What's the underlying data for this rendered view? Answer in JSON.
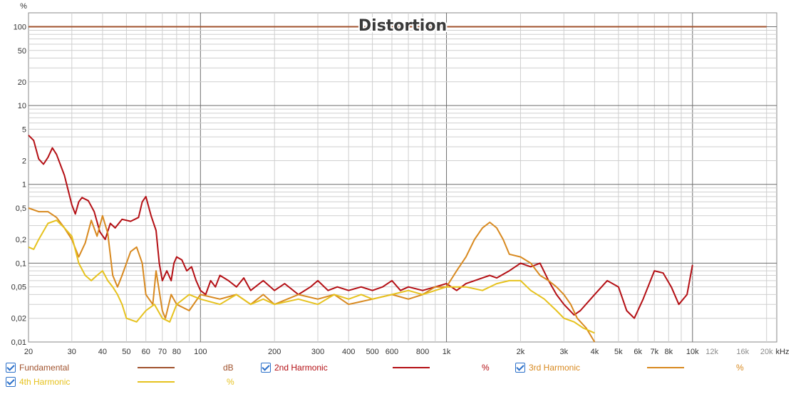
{
  "chart_data": {
    "type": "line",
    "title": "Distortion",
    "y_unit_label": "%",
    "x_unit_label": "kHz",
    "x_scale": "log",
    "y_scale": "log",
    "xlim": [
      20,
      22000
    ],
    "ylim": [
      0.01,
      150
    ],
    "grid": true,
    "legend_placement": "bottom",
    "x_ticks": [
      {
        "v": 20,
        "label": "20"
      },
      {
        "v": 30,
        "label": "30"
      },
      {
        "v": 40,
        "label": "40"
      },
      {
        "v": 50,
        "label": "50"
      },
      {
        "v": 60,
        "label": "60"
      },
      {
        "v": 70,
        "label": "70"
      },
      {
        "v": 80,
        "label": "80"
      },
      {
        "v": 100,
        "label": "100"
      },
      {
        "v": 200,
        "label": "200"
      },
      {
        "v": 300,
        "label": "300"
      },
      {
        "v": 400,
        "label": "400"
      },
      {
        "v": 500,
        "label": "500"
      },
      {
        "v": 600,
        "label": "600"
      },
      {
        "v": 800,
        "label": "800"
      },
      {
        "v": 1000,
        "label": "1k"
      },
      {
        "v": 2000,
        "label": "2k"
      },
      {
        "v": 3000,
        "label": "3k"
      },
      {
        "v": 4000,
        "label": "4k"
      },
      {
        "v": 5000,
        "label": "5k"
      },
      {
        "v": 6000,
        "label": "6k"
      },
      {
        "v": 7000,
        "label": "7k"
      },
      {
        "v": 8000,
        "label": "8k"
      },
      {
        "v": 10000,
        "label": "10k"
      },
      {
        "v": 12000,
        "label": "12k"
      },
      {
        "v": 16000,
        "label": "16k"
      },
      {
        "v": 20000,
        "label": "20k"
      }
    ],
    "y_ticks": [
      {
        "v": 100,
        "label": "100"
      },
      {
        "v": 50,
        "label": "50"
      },
      {
        "v": 20,
        "label": "20"
      },
      {
        "v": 10,
        "label": "10"
      },
      {
        "v": 5,
        "label": "5"
      },
      {
        "v": 2,
        "label": "2"
      },
      {
        "v": 1,
        "label": "1"
      },
      {
        "v": 0.5,
        "label": "0,5"
      },
      {
        "v": 0.2,
        "label": "0,2"
      },
      {
        "v": 0.1,
        "label": "0,1"
      },
      {
        "v": 0.05,
        "label": "0,05"
      },
      {
        "v": 0.02,
        "label": "0,02"
      },
      {
        "v": 0.01,
        "label": "0,01"
      }
    ],
    "series": [
      {
        "name": "Fundamental",
        "unit": "dB",
        "color": "#a0522d",
        "checked": true,
        "points": [
          [
            20,
            100
          ],
          [
            20000,
            100
          ]
        ]
      },
      {
        "name": "2nd Harmonic",
        "unit": "%",
        "color": "#b40f14",
        "checked": true,
        "points": [
          [
            20,
            4.2
          ],
          [
            21,
            3.6
          ],
          [
            22,
            2.1
          ],
          [
            23,
            1.8
          ],
          [
            24,
            2.2
          ],
          [
            25,
            2.9
          ],
          [
            26,
            2.4
          ],
          [
            28,
            1.3
          ],
          [
            30,
            0.55
          ],
          [
            31,
            0.42
          ],
          [
            32,
            0.6
          ],
          [
            33,
            0.68
          ],
          [
            35,
            0.62
          ],
          [
            37,
            0.45
          ],
          [
            39,
            0.25
          ],
          [
            41,
            0.2
          ],
          [
            43,
            0.32
          ],
          [
            45,
            0.28
          ],
          [
            48,
            0.36
          ],
          [
            52,
            0.34
          ],
          [
            56,
            0.38
          ],
          [
            58,
            0.6
          ],
          [
            60,
            0.7
          ],
          [
            63,
            0.4
          ],
          [
            66,
            0.26
          ],
          [
            68,
            0.1
          ],
          [
            70,
            0.06
          ],
          [
            73,
            0.08
          ],
          [
            76,
            0.06
          ],
          [
            78,
            0.1
          ],
          [
            80,
            0.12
          ],
          [
            84,
            0.11
          ],
          [
            88,
            0.08
          ],
          [
            92,
            0.09
          ],
          [
            96,
            0.06
          ],
          [
            100,
            0.045
          ],
          [
            105,
            0.04
          ],
          [
            110,
            0.06
          ],
          [
            115,
            0.05
          ],
          [
            120,
            0.07
          ],
          [
            130,
            0.06
          ],
          [
            140,
            0.05
          ],
          [
            150,
            0.065
          ],
          [
            160,
            0.045
          ],
          [
            180,
            0.06
          ],
          [
            200,
            0.045
          ],
          [
            220,
            0.055
          ],
          [
            250,
            0.04
          ],
          [
            280,
            0.05
          ],
          [
            300,
            0.06
          ],
          [
            330,
            0.045
          ],
          [
            360,
            0.05
          ],
          [
            400,
            0.045
          ],
          [
            450,
            0.05
          ],
          [
            500,
            0.045
          ],
          [
            550,
            0.05
          ],
          [
            600,
            0.06
          ],
          [
            650,
            0.045
          ],
          [
            700,
            0.05
          ],
          [
            800,
            0.045
          ],
          [
            900,
            0.05
          ],
          [
            1000,
            0.055
          ],
          [
            1100,
            0.045
          ],
          [
            1200,
            0.055
          ],
          [
            1300,
            0.06
          ],
          [
            1400,
            0.065
          ],
          [
            1500,
            0.07
          ],
          [
            1600,
            0.065
          ],
          [
            1800,
            0.08
          ],
          [
            2000,
            0.1
          ],
          [
            2200,
            0.09
          ],
          [
            2400,
            0.1
          ],
          [
            2600,
            0.06
          ],
          [
            2800,
            0.04
          ],
          [
            3000,
            0.03
          ],
          [
            3300,
            0.022
          ],
          [
            3500,
            0.025
          ],
          [
            4000,
            0.04
          ],
          [
            4500,
            0.06
          ],
          [
            5000,
            0.05
          ],
          [
            5400,
            0.025
          ],
          [
            5800,
            0.02
          ],
          [
            6300,
            0.035
          ],
          [
            7000,
            0.08
          ],
          [
            7600,
            0.075
          ],
          [
            8200,
            0.05
          ],
          [
            8800,
            0.03
          ],
          [
            9500,
            0.04
          ],
          [
            10000,
            0.095
          ]
        ]
      },
      {
        "name": "3rd Harmonic",
        "unit": "%",
        "color": "#d8891f",
        "checked": true,
        "points": [
          [
            20,
            0.5
          ],
          [
            22,
            0.45
          ],
          [
            24,
            0.45
          ],
          [
            26,
            0.38
          ],
          [
            28,
            0.28
          ],
          [
            30,
            0.2
          ],
          [
            32,
            0.12
          ],
          [
            34,
            0.18
          ],
          [
            36,
            0.35
          ],
          [
            38,
            0.22
          ],
          [
            40,
            0.4
          ],
          [
            42,
            0.24
          ],
          [
            44,
            0.07
          ],
          [
            46,
            0.05
          ],
          [
            48,
            0.07
          ],
          [
            52,
            0.14
          ],
          [
            55,
            0.16
          ],
          [
            58,
            0.1
          ],
          [
            60,
            0.04
          ],
          [
            64,
            0.03
          ],
          [
            66,
            0.08
          ],
          [
            70,
            0.025
          ],
          [
            72,
            0.02
          ],
          [
            76,
            0.04
          ],
          [
            80,
            0.03
          ],
          [
            90,
            0.025
          ],
          [
            100,
            0.04
          ],
          [
            120,
            0.035
          ],
          [
            140,
            0.04
          ],
          [
            160,
            0.03
          ],
          [
            180,
            0.04
          ],
          [
            200,
            0.03
          ],
          [
            250,
            0.04
          ],
          [
            300,
            0.035
          ],
          [
            350,
            0.04
          ],
          [
            400,
            0.03
          ],
          [
            500,
            0.035
          ],
          [
            600,
            0.04
          ],
          [
            700,
            0.035
          ],
          [
            800,
            0.04
          ],
          [
            900,
            0.05
          ],
          [
            1000,
            0.05
          ],
          [
            1100,
            0.08
          ],
          [
            1200,
            0.12
          ],
          [
            1300,
            0.2
          ],
          [
            1400,
            0.28
          ],
          [
            1500,
            0.33
          ],
          [
            1600,
            0.28
          ],
          [
            1700,
            0.2
          ],
          [
            1800,
            0.13
          ],
          [
            2000,
            0.12
          ],
          [
            2200,
            0.1
          ],
          [
            2400,
            0.07
          ],
          [
            2600,
            0.06
          ],
          [
            2800,
            0.05
          ],
          [
            3000,
            0.04
          ],
          [
            3200,
            0.03
          ],
          [
            3400,
            0.02
          ],
          [
            3700,
            0.015
          ],
          [
            4000,
            0.01
          ]
        ]
      },
      {
        "name": "4th Harmonic",
        "unit": "%",
        "color": "#e6c21e",
        "checked": true,
        "points": [
          [
            20,
            0.16
          ],
          [
            21,
            0.15
          ],
          [
            22,
            0.2
          ],
          [
            24,
            0.32
          ],
          [
            26,
            0.35
          ],
          [
            28,
            0.28
          ],
          [
            30,
            0.22
          ],
          [
            32,
            0.1
          ],
          [
            34,
            0.07
          ],
          [
            36,
            0.06
          ],
          [
            38,
            0.07
          ],
          [
            40,
            0.08
          ],
          [
            42,
            0.06
          ],
          [
            44,
            0.05
          ],
          [
            46,
            0.04
          ],
          [
            48,
            0.03
          ],
          [
            50,
            0.02
          ],
          [
            55,
            0.018
          ],
          [
            60,
            0.025
          ],
          [
            65,
            0.03
          ],
          [
            70,
            0.02
          ],
          [
            75,
            0.018
          ],
          [
            80,
            0.03
          ],
          [
            90,
            0.04
          ],
          [
            100,
            0.035
          ],
          [
            120,
            0.03
          ],
          [
            140,
            0.04
          ],
          [
            160,
            0.03
          ],
          [
            180,
            0.035
          ],
          [
            200,
            0.03
          ],
          [
            250,
            0.035
          ],
          [
            300,
            0.03
          ],
          [
            350,
            0.04
          ],
          [
            400,
            0.035
          ],
          [
            450,
            0.04
          ],
          [
            500,
            0.035
          ],
          [
            600,
            0.04
          ],
          [
            700,
            0.045
          ],
          [
            800,
            0.04
          ],
          [
            900,
            0.045
          ],
          [
            1000,
            0.05
          ],
          [
            1200,
            0.05
          ],
          [
            1400,
            0.045
          ],
          [
            1600,
            0.055
          ],
          [
            1800,
            0.06
          ],
          [
            2000,
            0.06
          ],
          [
            2200,
            0.045
          ],
          [
            2500,
            0.035
          ],
          [
            2800,
            0.025
          ],
          [
            3000,
            0.02
          ],
          [
            3300,
            0.018
          ],
          [
            3600,
            0.015
          ],
          [
            4000,
            0.013
          ]
        ]
      }
    ]
  }
}
